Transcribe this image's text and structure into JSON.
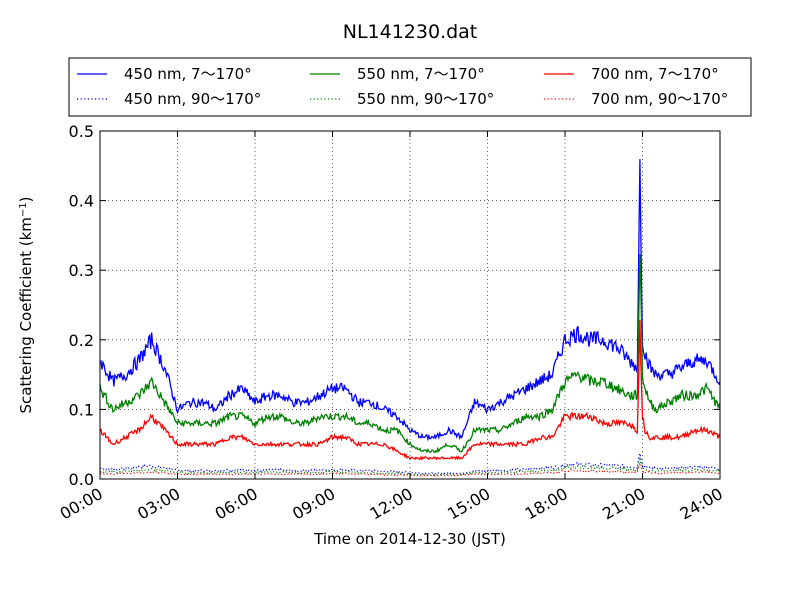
{
  "chart_data": {
    "type": "line",
    "title": "NL141230.dat",
    "xlabel": "Time on 2014-12-30 (JST)",
    "ylabel": "Scattering Coefficient (km",
    "ylabel_sup": "−1",
    "ylabel_close": ")",
    "xlim": [
      0,
      24
    ],
    "ylim": [
      0,
      0.5
    ],
    "grid": true,
    "legend_position": "top",
    "x_ticks": [
      {
        "value": 0,
        "label": "00:00"
      },
      {
        "value": 3,
        "label": "03:00"
      },
      {
        "value": 6,
        "label": "06:00"
      },
      {
        "value": 9,
        "label": "09:00"
      },
      {
        "value": 12,
        "label": "12:00"
      },
      {
        "value": 15,
        "label": "15:00"
      },
      {
        "value": 18,
        "label": "18:00"
      },
      {
        "value": 21,
        "label": "21:00"
      },
      {
        "value": 24,
        "label": "24:00"
      }
    ],
    "y_ticks": [
      {
        "value": 0.0,
        "label": "0.0"
      },
      {
        "value": 0.1,
        "label": "0.1"
      },
      {
        "value": 0.2,
        "label": "0.2"
      },
      {
        "value": 0.3,
        "label": "0.3"
      },
      {
        "value": 0.4,
        "label": "0.4"
      },
      {
        "value": 0.5,
        "label": "0.5"
      }
    ],
    "x": [
      0,
      0.5,
      1,
      1.5,
      2,
      2.5,
      3,
      3.5,
      4,
      4.5,
      5,
      5.5,
      6,
      6.5,
      7,
      7.5,
      8,
      8.5,
      9,
      9.5,
      10,
      10.5,
      11,
      11.5,
      12,
      12.5,
      13,
      13.5,
      14,
      14.5,
      15,
      15.5,
      16,
      16.5,
      17,
      17.5,
      18,
      18.5,
      19,
      19.5,
      20,
      20.5,
      20.8,
      20.9,
      21,
      21.1,
      21.3,
      21.5,
      22,
      22.5,
      23,
      23.5,
      24
    ],
    "series": [
      {
        "name": "450 nm, 7～170°",
        "color": "#0000ff",
        "style": "solid",
        "values": [
          0.17,
          0.14,
          0.15,
          0.17,
          0.2,
          0.16,
          0.1,
          0.11,
          0.11,
          0.1,
          0.12,
          0.13,
          0.11,
          0.12,
          0.12,
          0.11,
          0.11,
          0.12,
          0.13,
          0.13,
          0.11,
          0.11,
          0.1,
          0.09,
          0.07,
          0.06,
          0.06,
          0.07,
          0.06,
          0.11,
          0.1,
          0.11,
          0.12,
          0.13,
          0.14,
          0.15,
          0.2,
          0.21,
          0.2,
          0.2,
          0.19,
          0.17,
          0.16,
          0.45,
          0.2,
          0.18,
          0.16,
          0.15,
          0.15,
          0.16,
          0.17,
          0.17,
          0.14
        ]
      },
      {
        "name": "550 nm, 7～170°",
        "color": "#008000",
        "style": "solid",
        "values": [
          0.13,
          0.1,
          0.11,
          0.12,
          0.14,
          0.11,
          0.08,
          0.08,
          0.08,
          0.08,
          0.09,
          0.09,
          0.08,
          0.09,
          0.09,
          0.08,
          0.08,
          0.09,
          0.09,
          0.09,
          0.08,
          0.08,
          0.07,
          0.07,
          0.05,
          0.04,
          0.04,
          0.05,
          0.04,
          0.07,
          0.07,
          0.07,
          0.08,
          0.09,
          0.09,
          0.1,
          0.14,
          0.15,
          0.14,
          0.14,
          0.13,
          0.12,
          0.12,
          0.33,
          0.15,
          0.13,
          0.11,
          0.1,
          0.11,
          0.12,
          0.12,
          0.13,
          0.1
        ]
      },
      {
        "name": "700 nm, 7～170°",
        "color": "#ff0000",
        "style": "solid",
        "values": [
          0.07,
          0.05,
          0.06,
          0.07,
          0.09,
          0.07,
          0.05,
          0.05,
          0.05,
          0.05,
          0.06,
          0.06,
          0.05,
          0.05,
          0.05,
          0.05,
          0.05,
          0.05,
          0.06,
          0.06,
          0.05,
          0.05,
          0.05,
          0.04,
          0.03,
          0.03,
          0.03,
          0.03,
          0.03,
          0.05,
          0.05,
          0.05,
          0.05,
          0.05,
          0.06,
          0.06,
          0.09,
          0.09,
          0.09,
          0.08,
          0.08,
          0.08,
          0.07,
          0.22,
          0.09,
          0.07,
          0.06,
          0.06,
          0.06,
          0.06,
          0.07,
          0.07,
          0.06
        ]
      },
      {
        "name": "450 nm, 90～170°",
        "color": "#0000ff",
        "style": "dotted",
        "values": [
          0.015,
          0.014,
          0.015,
          0.017,
          0.019,
          0.016,
          0.012,
          0.012,
          0.012,
          0.012,
          0.013,
          0.013,
          0.012,
          0.013,
          0.013,
          0.012,
          0.012,
          0.013,
          0.013,
          0.013,
          0.012,
          0.012,
          0.011,
          0.011,
          0.009,
          0.008,
          0.008,
          0.009,
          0.008,
          0.012,
          0.012,
          0.012,
          0.013,
          0.014,
          0.015,
          0.016,
          0.02,
          0.021,
          0.02,
          0.02,
          0.019,
          0.018,
          0.017,
          0.04,
          0.02,
          0.018,
          0.016,
          0.015,
          0.015,
          0.016,
          0.017,
          0.017,
          0.015
        ]
      },
      {
        "name": "550 nm, 90～170°",
        "color": "#008000",
        "style": "dotted",
        "values": [
          0.011,
          0.01,
          0.011,
          0.012,
          0.014,
          0.012,
          0.009,
          0.009,
          0.009,
          0.009,
          0.01,
          0.01,
          0.009,
          0.01,
          0.01,
          0.009,
          0.009,
          0.01,
          0.01,
          0.01,
          0.009,
          0.009,
          0.008,
          0.008,
          0.007,
          0.006,
          0.006,
          0.007,
          0.006,
          0.009,
          0.009,
          0.009,
          0.01,
          0.011,
          0.011,
          0.012,
          0.016,
          0.017,
          0.016,
          0.016,
          0.015,
          0.014,
          0.013,
          0.03,
          0.016,
          0.014,
          0.012,
          0.011,
          0.012,
          0.012,
          0.013,
          0.013,
          0.011
        ]
      },
      {
        "name": "700 nm, 90～170°",
        "color": "#ff0000",
        "style": "dotted",
        "values": [
          0.008,
          0.007,
          0.008,
          0.009,
          0.01,
          0.009,
          0.007,
          0.007,
          0.007,
          0.007,
          0.007,
          0.007,
          0.007,
          0.007,
          0.007,
          0.007,
          0.007,
          0.007,
          0.008,
          0.008,
          0.007,
          0.007,
          0.006,
          0.006,
          0.005,
          0.005,
          0.005,
          0.005,
          0.005,
          0.007,
          0.007,
          0.007,
          0.007,
          0.008,
          0.008,
          0.009,
          0.012,
          0.012,
          0.012,
          0.011,
          0.011,
          0.01,
          0.01,
          0.022,
          0.012,
          0.01,
          0.009,
          0.008,
          0.009,
          0.009,
          0.009,
          0.01,
          0.008
        ]
      }
    ]
  }
}
